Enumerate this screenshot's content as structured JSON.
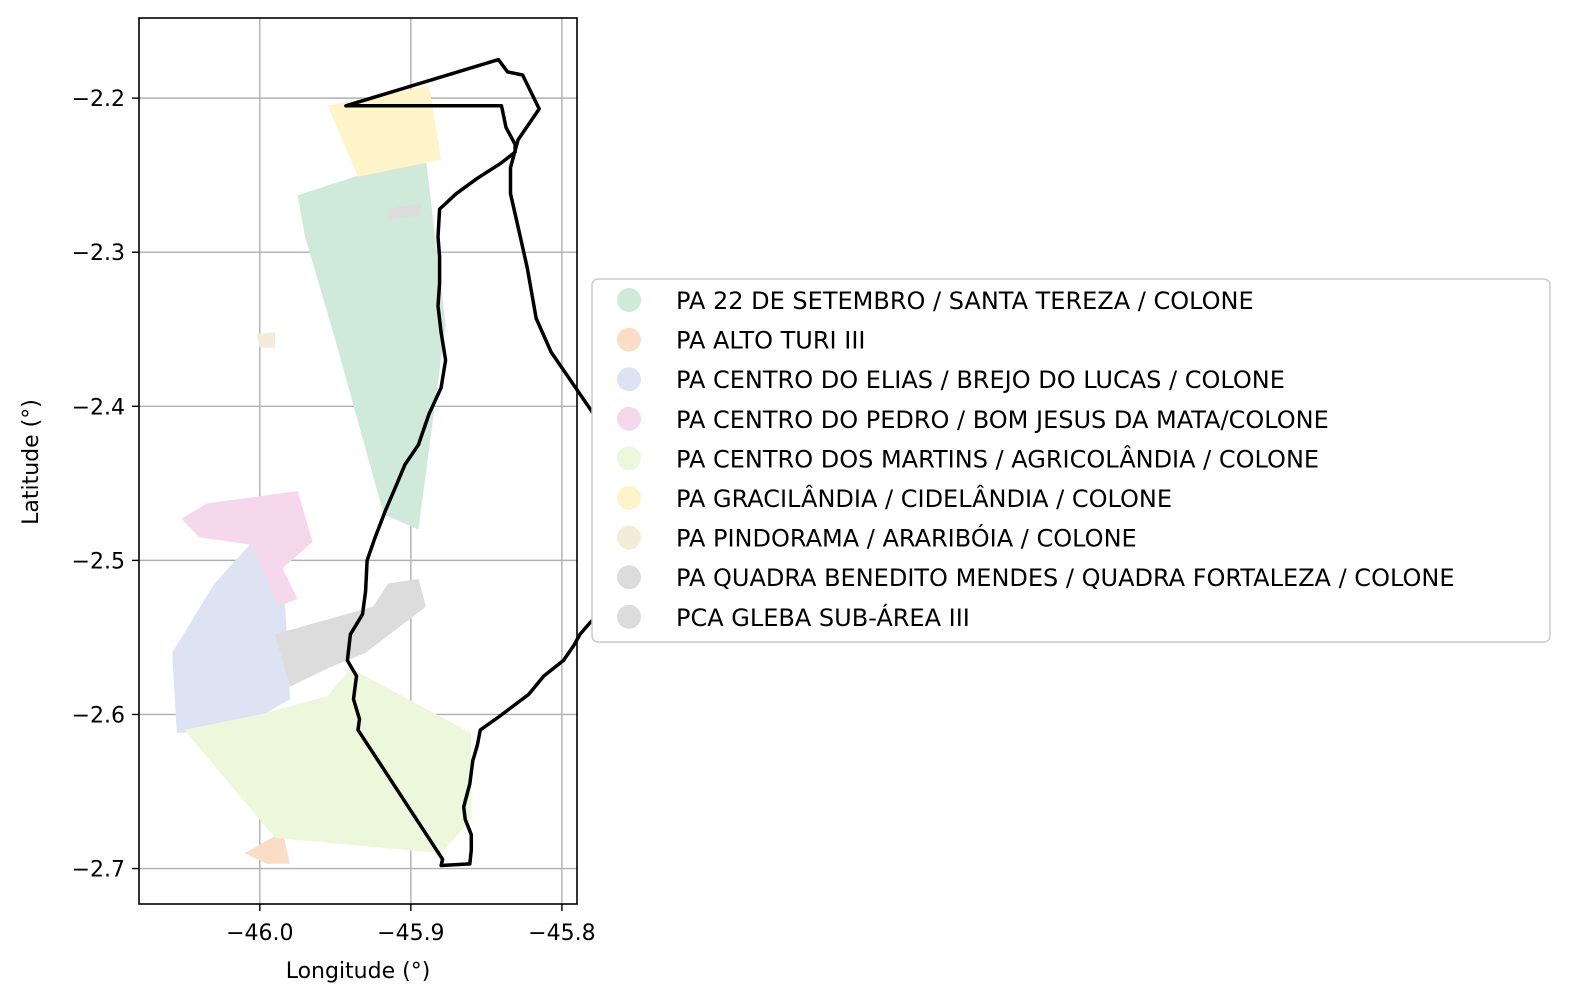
{
  "chart_data": {
    "type": "map",
    "xlabel": "Longitude (°)",
    "ylabel": "Latitude (°)",
    "xlim": [
      -46.08,
      -45.79
    ],
    "ylim": [
      -2.723,
      -2.148
    ],
    "xticks": [
      -46.0,
      -45.9,
      -45.8
    ],
    "xtick_labels": [
      "−46.0",
      "−45.9",
      "−45.8"
    ],
    "yticks": [
      -2.2,
      -2.3,
      -2.4,
      -2.5,
      -2.6,
      -2.7
    ],
    "ytick_labels": [
      "−2.2",
      "−2.3",
      "−2.4",
      "−2.5",
      "−2.6",
      "−2.7"
    ],
    "grid": true,
    "legend_position": "right",
    "boundary": {
      "color": "#000000",
      "coords": [
        [
          -45.943,
          -2.205
        ],
        [
          -45.842,
          -2.175
        ],
        [
          -45.836,
          -2.183
        ],
        [
          -45.826,
          -2.185
        ],
        [
          -45.815,
          -2.207
        ],
        [
          -45.829,
          -2.227
        ],
        [
          -45.834,
          -2.245
        ],
        [
          -45.834,
          -2.262
        ],
        [
          -45.828,
          -2.288
        ],
        [
          -45.823,
          -2.31
        ],
        [
          -45.817,
          -2.343
        ],
        [
          -45.807,
          -2.365
        ],
        [
          -45.793,
          -2.385
        ],
        [
          -45.779,
          -2.405
        ],
        [
          -45.776,
          -2.412
        ],
        [
          -45.776,
          -2.45
        ],
        [
          -45.777,
          -2.468
        ],
        [
          -45.772,
          -2.495
        ],
        [
          -45.77,
          -2.515
        ],
        [
          -45.768,
          -2.529
        ],
        [
          -45.781,
          -2.54
        ],
        [
          -45.788,
          -2.548
        ],
        [
          -45.792,
          -2.555
        ],
        [
          -45.799,
          -2.565
        ],
        [
          -45.812,
          -2.575
        ],
        [
          -45.822,
          -2.587
        ],
        [
          -45.841,
          -2.601
        ],
        [
          -45.854,
          -2.61
        ],
        [
          -45.856,
          -2.62
        ],
        [
          -45.859,
          -2.63
        ],
        [
          -45.861,
          -2.645
        ],
        [
          -45.865,
          -2.66
        ],
        [
          -45.864,
          -2.668
        ],
        [
          -45.86,
          -2.678
        ],
        [
          -45.86,
          -2.688
        ],
        [
          -45.861,
          -2.697
        ],
        [
          -45.88,
          -2.698
        ],
        [
          -45.879,
          -2.694
        ],
        [
          -45.935,
          -2.61
        ],
        [
          -45.934,
          -2.603
        ],
        [
          -45.938,
          -2.59
        ],
        [
          -45.936,
          -2.575
        ],
        [
          -45.942,
          -2.565
        ],
        [
          -45.94,
          -2.548
        ],
        [
          -45.932,
          -2.535
        ],
        [
          -45.93,
          -2.52
        ],
        [
          -45.929,
          -2.5
        ],
        [
          -45.924,
          -2.486
        ],
        [
          -45.917,
          -2.468
        ],
        [
          -45.91,
          -2.452
        ],
        [
          -45.904,
          -2.438
        ],
        [
          -45.895,
          -2.425
        ],
        [
          -45.888,
          -2.405
        ],
        [
          -45.88,
          -2.388
        ],
        [
          -45.877,
          -2.37
        ],
        [
          -45.88,
          -2.352
        ],
        [
          -45.882,
          -2.335
        ],
        [
          -45.881,
          -2.32
        ],
        [
          -45.881,
          -2.303
        ],
        [
          -45.882,
          -2.29
        ],
        [
          -45.881,
          -2.272
        ],
        [
          -45.87,
          -2.262
        ],
        [
          -45.856,
          -2.252
        ],
        [
          -45.84,
          -2.242
        ],
        [
          -45.831,
          -2.235
        ],
        [
          -45.831,
          -2.23
        ],
        [
          -45.837,
          -2.219
        ],
        [
          -45.84,
          -2.205
        ],
        [
          -45.943,
          -2.205
        ]
      ]
    },
    "series": [
      {
        "name": "PA 22 DE SETEMBRO / SANTA TEREZA / COLONE",
        "color": "#cfeadb",
        "coords": [
          [
            -45.975,
            -2.263
          ],
          [
            -45.934,
            -2.25
          ],
          [
            -45.89,
            -2.24
          ],
          [
            -45.877,
            -2.347
          ],
          [
            -45.895,
            -2.48
          ],
          [
            -45.918,
            -2.47
          ],
          [
            -45.95,
            -2.357
          ],
          [
            -45.97,
            -2.29
          ]
        ]
      },
      {
        "name": "PA ALTO TURI III",
        "color": "#fbdcc6",
        "coords": [
          [
            -46.01,
            -2.69
          ],
          [
            -45.985,
            -2.676
          ],
          [
            -45.98,
            -2.697
          ],
          [
            -45.995,
            -2.697
          ]
        ]
      },
      {
        "name": "PA CENTRO DO ELIAS / BREJO DO LUCAS / COLONE",
        "color": "#dde3f2",
        "coords": [
          [
            -46.03,
            -2.515
          ],
          [
            -46.005,
            -2.488
          ],
          [
            -45.985,
            -2.496
          ],
          [
            -45.98,
            -2.59
          ],
          [
            -46.015,
            -2.61
          ],
          [
            -46.055,
            -2.612
          ],
          [
            -46.058,
            -2.56
          ]
        ]
      },
      {
        "name": "PA CENTRO DO PEDRO / BOM JESUS DA MATA/COLONE",
        "color": "#f6d8ec",
        "coords": [
          [
            -46.052,
            -2.473
          ],
          [
            -46.035,
            -2.463
          ],
          [
            -45.975,
            -2.455
          ],
          [
            -45.965,
            -2.488
          ],
          [
            -45.985,
            -2.505
          ],
          [
            -45.975,
            -2.525
          ],
          [
            -45.988,
            -2.53
          ],
          [
            -46.005,
            -2.49
          ],
          [
            -46.04,
            -2.485
          ]
        ]
      },
      {
        "name": "PA CENTRO DOS MARTINS / AGRICOLÂNDIA / COLONE",
        "color": "#edf7dc",
        "coords": [
          [
            -46.05,
            -2.61
          ],
          [
            -46.0,
            -2.6
          ],
          [
            -45.955,
            -2.588
          ],
          [
            -45.94,
            -2.57
          ],
          [
            -45.86,
            -2.612
          ],
          [
            -45.86,
            -2.668
          ],
          [
            -45.88,
            -2.69
          ],
          [
            -45.99,
            -2.68
          ]
        ]
      },
      {
        "name": "PA GRACILÂNDIA / CIDELÂNDIA / COLONE",
        "color": "#fef4ca",
        "coords": [
          [
            -45.955,
            -2.205
          ],
          [
            -45.888,
            -2.192
          ],
          [
            -45.88,
            -2.24
          ],
          [
            -45.935,
            -2.251
          ]
        ]
      },
      {
        "name": "PA PINDORAMA / ARARIBÓIA / COLONE",
        "color": "#f4ebdb",
        "coords": [
          [
            -46.002,
            -2.353
          ],
          [
            -45.99,
            -2.352
          ],
          [
            -45.99,
            -2.362
          ],
          [
            -46.0,
            -2.362
          ]
        ]
      },
      {
        "name": "PA QUADRA BENEDITO MENDES / QUADRA FORTALEZA / COLONE",
        "color": "#dcdcdc",
        "coords": [
          [
            -45.915,
            -2.272
          ],
          [
            -45.893,
            -2.268
          ],
          [
            -45.893,
            -2.276
          ],
          [
            -45.915,
            -2.279
          ]
        ]
      },
      {
        "name": "PCA GLEBA SUB-ÁREA III",
        "color": "#dcdcdc",
        "coords": [
          [
            -45.99,
            -2.548
          ],
          [
            -45.925,
            -2.53
          ],
          [
            -45.915,
            -2.515
          ],
          [
            -45.895,
            -2.512
          ],
          [
            -45.89,
            -2.53
          ],
          [
            -45.93,
            -2.56
          ],
          [
            -45.955,
            -2.57
          ],
          [
            -45.98,
            -2.582
          ]
        ]
      }
    ]
  }
}
